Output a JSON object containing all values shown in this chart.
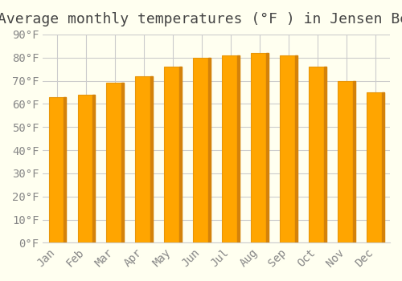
{
  "title": "Average monthly temperatures (°F ) in Jensen Beach",
  "months": [
    "Jan",
    "Feb",
    "Mar",
    "Apr",
    "May",
    "Jun",
    "Jul",
    "Aug",
    "Sep",
    "Oct",
    "Nov",
    "Dec"
  ],
  "values": [
    63,
    64,
    69,
    72,
    76,
    80,
    81,
    82,
    81,
    76,
    70,
    65
  ],
  "bar_color_face": "#FFA500",
  "bar_color_edge": "#E8960A",
  "background_color": "#FFFFF0",
  "ylim": [
    0,
    90
  ],
  "ytick_step": 10,
  "title_fontsize": 13,
  "tick_fontsize": 10,
  "grid_color": "#cccccc"
}
